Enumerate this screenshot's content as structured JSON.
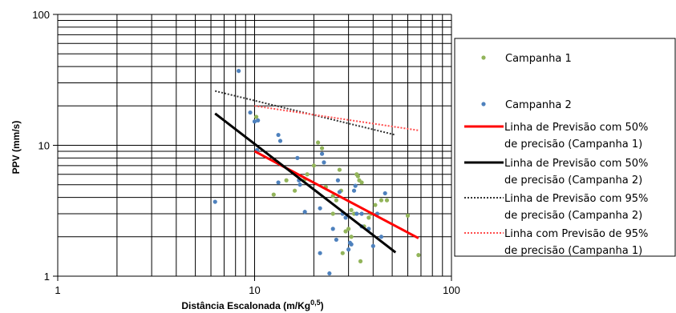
{
  "chart_data": {
    "type": "scatter",
    "xscale": "log",
    "yscale": "log",
    "xlim": [
      1,
      100
    ],
    "ylim": [
      1,
      100
    ],
    "xticks": [
      "1",
      "10",
      "100"
    ],
    "yticks": [
      "1",
      "10",
      "100"
    ],
    "xlabel": "Distância  Escalonada  (m/Kg",
    "xlabel_sup": "0,5",
    "xlabel_end": ")",
    "ylabel": "PPV (mm/s)",
    "grid": true,
    "legend_position": "right",
    "series": [
      {
        "name": "Campanha 1",
        "kind": "points",
        "color": "#92b45a",
        "points": [
          [
            10.2,
            16.5
          ],
          [
            12.5,
            4.2
          ],
          [
            14.5,
            5.4
          ],
          [
            16,
            4.5
          ],
          [
            18,
            5.5
          ],
          [
            18.5,
            6.0
          ],
          [
            20,
            7.0
          ],
          [
            21,
            10.5
          ],
          [
            22,
            9.5
          ],
          [
            23,
            4.8
          ],
          [
            25,
            4.1
          ],
          [
            25,
            3.0
          ],
          [
            26,
            3.8
          ],
          [
            27,
            6.5
          ],
          [
            27.5,
            4.5
          ],
          [
            28,
            1.5
          ],
          [
            29,
            2.2
          ],
          [
            30,
            2.3
          ],
          [
            31,
            2.0
          ],
          [
            31,
            3.2
          ],
          [
            32,
            3.0
          ],
          [
            33,
            6.0
          ],
          [
            33.5,
            5.8
          ],
          [
            34,
            5.4
          ],
          [
            35,
            5.2
          ],
          [
            36,
            2.4
          ],
          [
            38,
            2.8
          ],
          [
            39,
            3.0
          ],
          [
            41,
            3.5
          ],
          [
            44,
            3.8
          ],
          [
            47,
            3.8
          ],
          [
            60,
            2.9
          ],
          [
            68,
            1.45
          ],
          [
            34.5,
            1.3
          ]
        ]
      },
      {
        "name": "Campanha 2",
        "kind": "points",
        "color": "#4e81bd",
        "points": [
          [
            6.3,
            3.7
          ],
          [
            8.3,
            37
          ],
          [
            9.5,
            17.8
          ],
          [
            10,
            15.2
          ],
          [
            10.4,
            15.5
          ],
          [
            10.3,
            9.2
          ],
          [
            13.2,
            12
          ],
          [
            13.5,
            10.8
          ],
          [
            13.2,
            5.2
          ],
          [
            16.5,
            8.0
          ],
          [
            16.8,
            5.4
          ],
          [
            17,
            5.0
          ],
          [
            18,
            3.1
          ],
          [
            21.5,
            3.3
          ],
          [
            22,
            8.6
          ],
          [
            22.5,
            7.4
          ],
          [
            21.5,
            1.5
          ],
          [
            24,
            1.05
          ],
          [
            25,
            2.3
          ],
          [
            26,
            1.9
          ],
          [
            26.5,
            5.4
          ],
          [
            27,
            4.4
          ],
          [
            28,
            3.0
          ],
          [
            29,
            2.8
          ],
          [
            30,
            1.6
          ],
          [
            30.5,
            1.8
          ],
          [
            31,
            1.75
          ],
          [
            32,
            4.5
          ],
          [
            32.5,
            4.9
          ],
          [
            33,
            3.0
          ],
          [
            35,
            3.0
          ],
          [
            35,
            2.4
          ],
          [
            38,
            2.3
          ],
          [
            40,
            1.7
          ],
          [
            42,
            3.0
          ],
          [
            44,
            2.0
          ],
          [
            46,
            4.3
          ]
        ]
      },
      {
        "name": "Linha de Previsão com 50% de precisão (Campanha 1)",
        "kind": "line",
        "color": "#ff0000",
        "dash": "solid",
        "x": [
          10,
          68
        ],
        "y": [
          9.0,
          1.95
        ]
      },
      {
        "name": "Linha de Previsão com 50% de precisão (Campanha 2)",
        "kind": "line",
        "color": "#000000",
        "dash": "solid",
        "x": [
          6.3,
          52
        ],
        "y": [
          17.5,
          1.52
        ]
      },
      {
        "name": "Linha de Previsão com 95% de precisão (Campanha 2)",
        "kind": "line",
        "color": "#333333",
        "dash": "dotted",
        "x": [
          6.3,
          52
        ],
        "y": [
          26,
          12.0
        ]
      },
      {
        "name": "Linha com Previsão de 95% de precisão (Campanha 1)",
        "kind": "line",
        "color": "#ff4d4d",
        "dash": "dotted",
        "x": [
          10,
          68
        ],
        "y": [
          20,
          13.0
        ]
      }
    ],
    "legend": [
      {
        "symbol": "point",
        "color": "#92b45a",
        "lines": [
          "Campanha 1"
        ]
      },
      {
        "symbol": "point",
        "color": "#4e81bd",
        "lines": [
          "Campanha 2"
        ]
      },
      {
        "symbol": "line",
        "color": "#ff0000",
        "dash": "solid",
        "lines": [
          "Linha de Previsão com 50%",
          "de precisão (Campanha 1)"
        ]
      },
      {
        "symbol": "line",
        "color": "#000000",
        "dash": "solid",
        "lines": [
          "Linha de Previsão com 50%",
          "de precisão (Campanha 2)"
        ]
      },
      {
        "symbol": "line",
        "color": "#333333",
        "dash": "dotted",
        "lines": [
          "Linha de Previsão com 95%",
          "de precisão (Campanha 2)"
        ]
      },
      {
        "symbol": "line",
        "color": "#ff4d4d",
        "dash": "dotted",
        "lines": [
          "Linha com Previsão de 95%",
          "de precisão (Campanha 1)"
        ]
      }
    ]
  }
}
